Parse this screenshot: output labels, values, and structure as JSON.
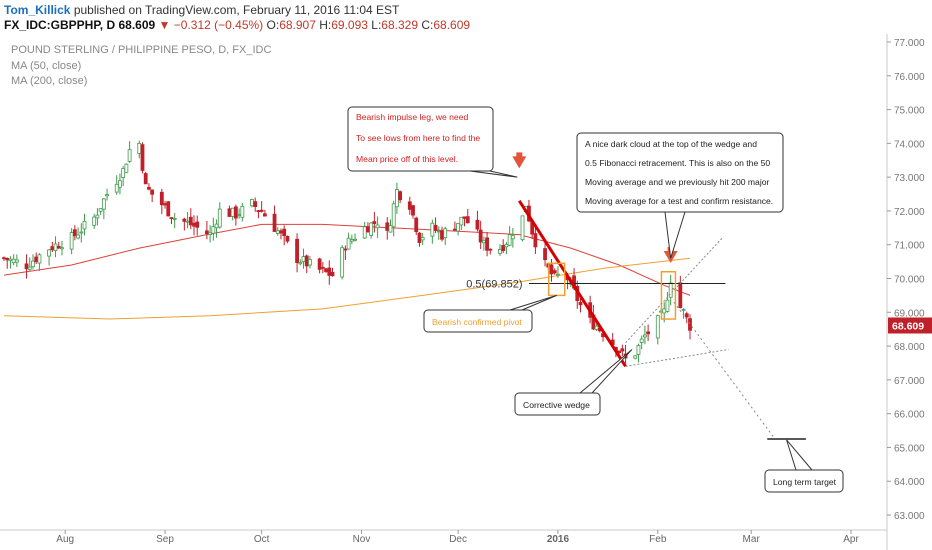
{
  "header": {
    "user": "Tom_Killick",
    "published": "published on TradingView.com, February 11, 2016 11:04 EST",
    "symbol": "FX_IDC:GBPPHP, D",
    "last": "68.609",
    "change_arrow": "▼",
    "change": "−0.312 (−0.45%)",
    "ohlc": [
      {
        "label": "O:",
        "value": "68.907"
      },
      {
        "label": "H:",
        "value": "69.093"
      },
      {
        "label": "L:",
        "value": "68.329"
      },
      {
        "label": "C:",
        "value": "68.609"
      }
    ]
  },
  "legend": {
    "title": "POUND STERLING / PHILIPPINE PESO, D, FX_IDC",
    "ma50": "MA (50, close)",
    "ma200": "MA (200, close)"
  },
  "colors": {
    "up": "#3f9b4c",
    "down": "#c0202a",
    "ma50": "#e0403a",
    "ma200": "#f0a030",
    "arrow": "#e2553a",
    "annotation_red": "#d42020",
    "annotation_orange": "#f0a030"
  },
  "chart_data": {
    "type": "candlestick",
    "title": "POUND STERLING / PHILIPPINE PESO, D, FX_IDC",
    "y_axis": {
      "side": "right",
      "range": [
        62.6,
        77.2
      ],
      "ticks": [
        "77.000",
        "76.000",
        "75.000",
        "74.000",
        "73.000",
        "72.000",
        "71.000",
        "70.000",
        "69.000",
        "68.000",
        "67.000",
        "66.000",
        "65.000",
        "64.000",
        "63.000"
      ],
      "last_price_label": "68.609"
    },
    "x_axis": {
      "start": "2015-07-13",
      "end": "2016-04-10",
      "ticks": [
        {
          "label": "Aug",
          "date": "2015-08-01"
        },
        {
          "label": "Sep",
          "date": "2015-09-01"
        },
        {
          "label": "Oct",
          "date": "2015-10-01"
        },
        {
          "label": "Nov",
          "date": "2015-11-01"
        },
        {
          "label": "Dec",
          "date": "2015-12-01"
        },
        {
          "label": "2016",
          "date": "2016-01-01"
        },
        {
          "label": "Feb",
          "date": "2016-02-01"
        },
        {
          "label": "Mar",
          "date": "2016-03-01"
        },
        {
          "label": "Apr",
          "date": "2016-04-01"
        }
      ]
    },
    "grid": false,
    "close_path": [
      [
        "2015-07-13",
        70.6
      ],
      [
        "2015-07-20",
        70.4
      ],
      [
        "2015-07-27",
        70.9
      ],
      [
        "2015-08-03",
        71.2
      ],
      [
        "2015-08-10",
        71.8
      ],
      [
        "2015-08-14",
        72.5
      ],
      [
        "2015-08-19",
        73.2
      ],
      [
        "2015-08-21",
        73.8
      ],
      [
        "2015-08-24",
        74.0
      ],
      [
        "2015-08-26",
        72.7
      ],
      [
        "2015-08-31",
        72.2
      ],
      [
        "2015-09-04",
        71.8
      ],
      [
        "2015-09-09",
        71.6
      ],
      [
        "2015-09-15",
        71.3
      ],
      [
        "2015-09-18",
        72.0
      ],
      [
        "2015-09-23",
        71.9
      ],
      [
        "2015-09-28",
        72.2
      ],
      [
        "2015-10-01",
        72.0
      ],
      [
        "2015-10-06",
        71.4
      ],
      [
        "2015-10-12",
        70.6
      ],
      [
        "2015-10-16",
        70.4
      ],
      [
        "2015-10-20",
        70.2
      ],
      [
        "2015-10-23",
        70.1
      ],
      [
        "2015-10-27",
        71.0
      ],
      [
        "2015-11-02",
        71.5
      ],
      [
        "2015-11-06",
        71.7
      ],
      [
        "2015-11-09",
        71.3
      ],
      [
        "2015-11-12",
        72.6
      ],
      [
        "2015-11-16",
        72.2
      ],
      [
        "2015-11-19",
        71.2
      ],
      [
        "2015-11-23",
        71.5
      ],
      [
        "2015-11-26",
        71.3
      ],
      [
        "2015-11-30",
        71.6
      ],
      [
        "2015-12-03",
        71.8
      ],
      [
        "2015-12-07",
        71.3
      ],
      [
        "2015-12-09",
        71.0
      ],
      [
        "2015-12-13",
        70.8
      ],
      [
        "2015-12-16",
        71.1
      ],
      [
        "2015-12-18",
        71.4
      ],
      [
        "2015-12-21",
        71.8
      ],
      [
        "2015-12-22",
        72.2
      ],
      [
        "2015-12-24",
        71.4
      ],
      [
        "2015-12-26",
        70.8
      ],
      [
        "2015-12-28",
        70.4
      ],
      [
        "2015-12-31",
        70.0
      ],
      [
        "2016-01-03",
        70.2
      ],
      [
        "2016-01-07",
        69.4
      ],
      [
        "2016-01-10",
        68.8
      ],
      [
        "2016-01-13",
        68.6
      ],
      [
        "2016-01-16",
        68.3
      ],
      [
        "2016-01-19",
        68.0
      ],
      [
        "2016-01-22",
        67.6
      ],
      [
        "2016-01-25",
        67.8
      ],
      [
        "2016-01-28",
        68.3
      ],
      [
        "2016-01-31",
        68.6
      ],
      [
        "2016-02-03",
        69.0
      ],
      [
        "2016-02-05",
        70.0
      ],
      [
        "2016-02-07",
        69.3
      ],
      [
        "2016-02-09",
        69.0
      ],
      [
        "2016-02-11",
        68.6
      ]
    ],
    "series": [
      {
        "name": "MA (50, close)",
        "points": [
          [
            "2015-07-13",
            70.1
          ],
          [
            "2015-08-03",
            70.4
          ],
          [
            "2015-08-24",
            70.9
          ],
          [
            "2015-09-14",
            71.3
          ],
          [
            "2015-10-01",
            71.6
          ],
          [
            "2015-10-20",
            71.6
          ],
          [
            "2015-11-10",
            71.5
          ],
          [
            "2015-12-01",
            71.4
          ],
          [
            "2015-12-20",
            71.3
          ],
          [
            "2016-01-05",
            70.9
          ],
          [
            "2016-01-20",
            70.4
          ],
          [
            "2016-02-03",
            69.8
          ],
          [
            "2016-02-11",
            69.5
          ]
        ]
      },
      {
        "name": "MA (200, close)",
        "points": [
          [
            "2015-07-13",
            68.9
          ],
          [
            "2015-08-15",
            68.8
          ],
          [
            "2015-09-15",
            68.9
          ],
          [
            "2015-10-20",
            69.1
          ],
          [
            "2015-11-20",
            69.5
          ],
          [
            "2015-12-20",
            69.9
          ],
          [
            "2016-01-15",
            70.3
          ],
          [
            "2016-02-11",
            70.6
          ]
        ]
      }
    ],
    "annotations": [
      {
        "type": "box",
        "text": [
          "Bearish impulse leg, we need",
          "To see lows from here to find the",
          "Mean price off of this level."
        ],
        "color": "red"
      },
      {
        "type": "box",
        "text": [
          "A nice dark cloud at the top of the wedge and",
          "0.5 Fibonacci retracement. This is also on the 50",
          "Moving average and we previously hit 200 major",
          "Moving average for a test and confirm resistance."
        ],
        "color": "black"
      },
      {
        "type": "box",
        "text": [
          "Bearish confirmed pivot"
        ],
        "color": "orange"
      },
      {
        "type": "box",
        "text": [
          "Corrective wedge"
        ],
        "color": "black"
      },
      {
        "type": "box",
        "text": [
          "Long term target"
        ],
        "color": "black"
      },
      {
        "type": "level",
        "label": "0.5(69.852)",
        "value": 69.852
      },
      {
        "type": "level",
        "value": 65.25,
        "note": "long term target line"
      }
    ]
  }
}
